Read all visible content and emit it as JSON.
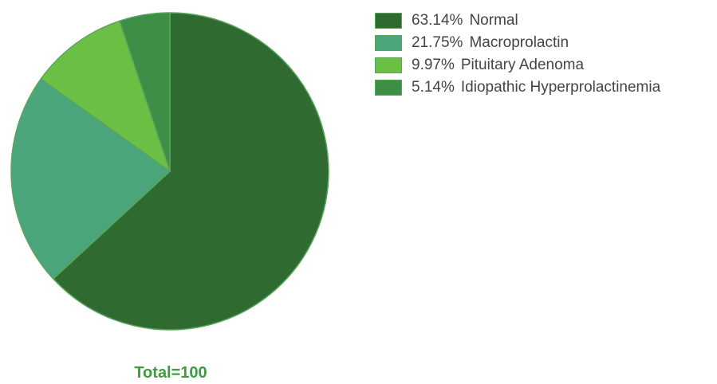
{
  "chart_data": {
    "type": "pie",
    "total_label": "Total=100",
    "series": [
      {
        "label": "Normal",
        "value": 63.14,
        "percent_text": "63.14%",
        "color": "#2f6b30"
      },
      {
        "label": "Macroprolactin",
        "value": 21.75,
        "percent_text": "21.75%",
        "color": "#4aa67a"
      },
      {
        "label": "Pituitary Adenoma",
        "value": 9.97,
        "percent_text": "9.97%",
        "color": "#6cbf45"
      },
      {
        "label": "Idiopathic Hyperprolactinemia",
        "value": 5.14,
        "percent_text": "5.14%",
        "color": "#3e8f45"
      }
    ],
    "legend_position": "top-right",
    "slice_border_color": "#5aa55c"
  }
}
